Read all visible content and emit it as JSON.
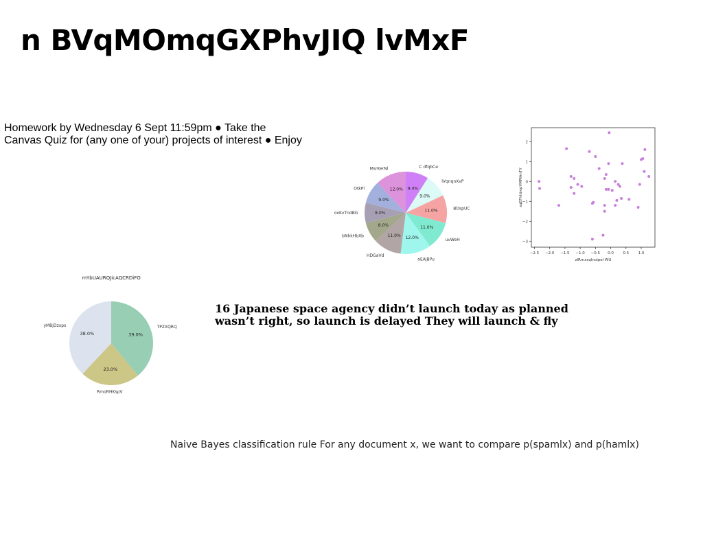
{
  "page": {
    "title": "n BVqMOmqGXPhvJIQ lvMxF",
    "homework_text": "Homework by Wednesday 6 Sept 11:59pm ● Take the Canvas Quiz for (any one of your) projects of interest ● Enjoy",
    "news_text": "16 Japanese space agency didn’t launch today as planned wasn’t right, so launch is delayed They will launch & fly",
    "rule_text": "Naive Bayes classification rule For any document x, we want to compare p(spamlx) and p(hamlx)"
  },
  "chart_data": [
    {
      "type": "pie",
      "title": "",
      "start_angle_deg": 90,
      "direction": "clockwise",
      "categories": [
        "C dfqbCe",
        "lVqnqnXvP",
        "BDspUC",
        "uvWeH",
        "oEAjBPu",
        "HDGaVd",
        "bNhkHbXb",
        "oxKvTndBG",
        "OtkPl",
        "MsrKerNl"
      ],
      "values": [
        9.0,
        9.0,
        11.0,
        11.0,
        12.0,
        11.0,
        8.0,
        8.0,
        9.0,
        12.0
      ],
      "labels": [
        "9.0%",
        "9.0%",
        "11.0%",
        "11.0%",
        "12.0%",
        "11.0%",
        "8.0%",
        "8.0%",
        "9.0%",
        "12.0%"
      ],
      "colors": [
        "#cf80f7",
        "#dcfaf6",
        "#f5a3a3",
        "#7feacf",
        "#9ef6ec",
        "#b2a5a5",
        "#a3a88c",
        "#a7a0b4",
        "#a3afdc",
        "#dd92dc"
      ]
    },
    {
      "type": "scatter",
      "title": "",
      "xlabel": "zlRmxsqlnoipel WU",
      "ylabel": "sqEFhhbvpVMMAnTY",
      "xlim": [
        -2.6,
        1.45
      ],
      "ylim": [
        -3.3,
        2.7
      ],
      "xticks": [
        -2.5,
        -2.0,
        -1.5,
        -1.0,
        -0.5,
        0.0,
        0.5,
        1.0
      ],
      "xtick_labels": [
        "−2.5",
        "−2.0",
        "−1.5",
        "−1.0",
        "−0.5",
        "0.0",
        "0.5",
        "1.0"
      ],
      "yticks": [
        -3,
        -2,
        -1,
        0,
        1,
        2
      ],
      "ytick_labels": [
        "−3",
        "−2",
        "−1",
        "0",
        "1",
        "2"
      ],
      "grid": false,
      "color": "#c77fdb",
      "points": [
        [
          -2.35,
          0.0
        ],
        [
          -2.33,
          -0.35
        ],
        [
          -1.7,
          -1.2
        ],
        [
          -1.45,
          1.65
        ],
        [
          -1.3,
          0.25
        ],
        [
          -1.3,
          -0.3
        ],
        [
          -1.2,
          0.15
        ],
        [
          -1.2,
          -0.6
        ],
        [
          -1.08,
          -0.15
        ],
        [
          -0.95,
          -0.25
        ],
        [
          -0.7,
          1.5
        ],
        [
          -0.6,
          -1.1
        ],
        [
          -0.57,
          -1.05
        ],
        [
          -0.6,
          -2.9
        ],
        [
          -0.5,
          1.25
        ],
        [
          -0.38,
          0.65
        ],
        [
          -0.25,
          -2.7
        ],
        [
          -0.2,
          0.15
        ],
        [
          -0.2,
          -1.2
        ],
        [
          -0.2,
          -1.5
        ],
        [
          -0.15,
          0.35
        ],
        [
          -0.15,
          -0.4
        ],
        [
          -0.07,
          0.9
        ],
        [
          -0.07,
          -0.4
        ],
        [
          -0.05,
          2.45
        ],
        [
          0.05,
          -0.45
        ],
        [
          0.15,
          0.0
        ],
        [
          0.15,
          -1.2
        ],
        [
          0.2,
          -0.95
        ],
        [
          0.25,
          -0.15
        ],
        [
          0.3,
          -0.25
        ],
        [
          0.35,
          -0.85
        ],
        [
          0.38,
          0.9
        ],
        [
          0.6,
          -0.9
        ],
        [
          0.9,
          -1.3
        ],
        [
          0.95,
          -0.15
        ],
        [
          1.0,
          1.1
        ],
        [
          1.05,
          1.15
        ],
        [
          1.1,
          0.5
        ],
        [
          1.12,
          1.6
        ],
        [
          1.25,
          0.25
        ]
      ]
    },
    {
      "type": "pie",
      "title": "mYbUAURQJicAQCRDiFO",
      "start_angle_deg": 90,
      "direction": "clockwise",
      "categories": [
        "TPZXQRQ",
        "RmoRHKspV",
        "yMBjDzxps"
      ],
      "values": [
        39.0,
        23.0,
        38.0
      ],
      "labels": [
        "39.0%",
        "23.0%",
        "38.0%"
      ],
      "colors": [
        "#97ceb4",
        "#ccc687",
        "#dce3ee"
      ]
    }
  ]
}
